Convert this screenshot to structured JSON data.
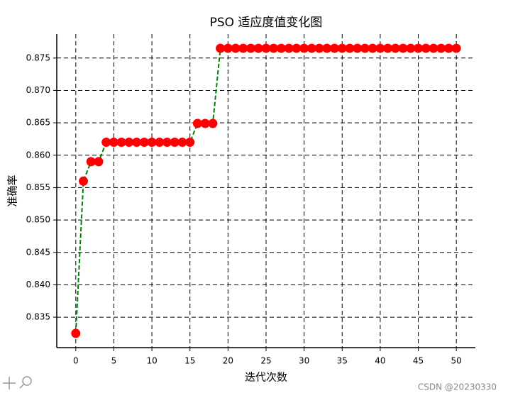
{
  "chart_data": {
    "type": "line",
    "title": "PSO 适应度值变化图",
    "x_label": "迭代次数",
    "y_label": "准确率",
    "x": [
      0,
      1,
      2,
      3,
      4,
      5,
      6,
      7,
      8,
      9,
      10,
      11,
      12,
      13,
      14,
      15,
      16,
      17,
      18,
      19,
      20,
      21,
      22,
      23,
      24,
      25,
      26,
      27,
      28,
      29,
      30,
      31,
      32,
      33,
      34,
      35,
      36,
      37,
      38,
      39,
      40,
      41,
      42,
      43,
      44,
      45,
      46,
      47,
      48,
      49,
      50
    ],
    "values": [
      0.8325,
      0.856,
      0.859,
      0.859,
      0.862,
      0.862,
      0.862,
      0.862,
      0.862,
      0.862,
      0.862,
      0.862,
      0.862,
      0.862,
      0.862,
      0.862,
      0.8649,
      0.8649,
      0.8649,
      0.8765,
      0.8765,
      0.8765,
      0.8765,
      0.8765,
      0.8765,
      0.8765,
      0.8765,
      0.8765,
      0.8765,
      0.8765,
      0.8765,
      0.8765,
      0.8765,
      0.8765,
      0.8765,
      0.8765,
      0.8765,
      0.8765,
      0.8765,
      0.8765,
      0.8765,
      0.8765,
      0.8765,
      0.8765,
      0.8765,
      0.8765,
      0.8765,
      0.8765,
      0.8765,
      0.8765,
      0.8765
    ],
    "line_color": "green",
    "marker_color": "red",
    "xlim": [
      -2.5,
      52.5
    ],
    "xticks": [
      0,
      5,
      10,
      15,
      20,
      25,
      30,
      35,
      40,
      45,
      50
    ],
    "ylim": [
      0.8303,
      0.8787
    ],
    "yticks": [
      0.835,
      {
        "value": 0.84,
        "label": "0.840"
      },
      0.845,
      {
        "value": 0.85,
        "label": "0.850"
      },
      0.855,
      {
        "value": 0.86,
        "label": "0.860"
      },
      0.865,
      {
        "value": 0.87,
        "label": "0.870"
      },
      0.875
    ],
    "grid": true,
    "watermark": "CSDN @20230330"
  }
}
